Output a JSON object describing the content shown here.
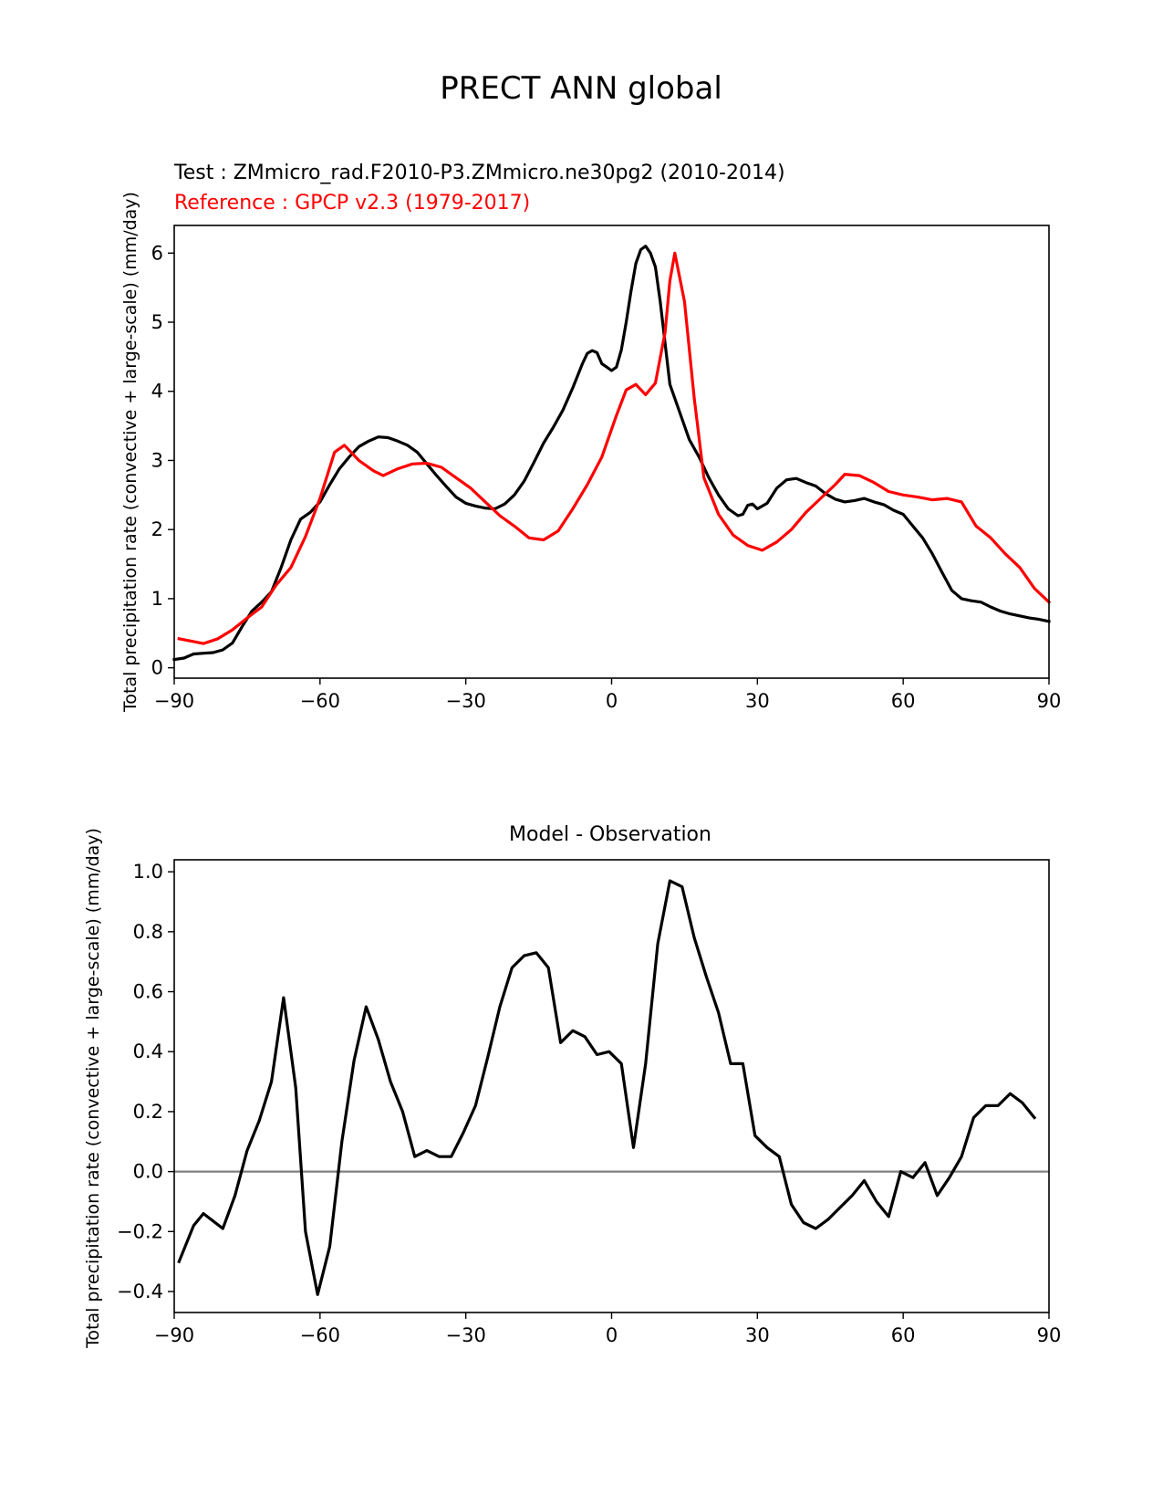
{
  "figure_title": "PRECT ANN global",
  "chart_data": [
    {
      "type": "line",
      "test_label": "Test : ZMmicro_rad.F2010-P3.ZMmicro.ne30pg2 (2010-2014)",
      "reference_label": "Reference : GPCP v2.3 (1979-2017)",
      "ylabel": "Total precipitation rate (convective + large-scale) (mm/day)",
      "xlim": [
        -90,
        90
      ],
      "ylim": [
        -0.15,
        6.4
      ],
      "xticks": [
        -90,
        -60,
        -30,
        0,
        30,
        60,
        90
      ],
      "xtick_labels": [
        "−90",
        "−60",
        "−30",
        "0",
        "30",
        "60",
        "90"
      ],
      "yticks": [
        0,
        1,
        2,
        3,
        4,
        5,
        6
      ],
      "ytick_labels": [
        "0",
        "1",
        "2",
        "3",
        "4",
        "5",
        "6"
      ],
      "series": [
        {
          "role": "test",
          "color": "#000000",
          "points": [
            [
              -90,
              0.12
            ],
            [
              -88,
              0.14
            ],
            [
              -86,
              0.2
            ],
            [
              -84,
              0.21
            ],
            [
              -82,
              0.22
            ],
            [
              -80,
              0.26
            ],
            [
              -78,
              0.36
            ],
            [
              -76,
              0.6
            ],
            [
              -74,
              0.82
            ],
            [
              -72,
              0.95
            ],
            [
              -70,
              1.1
            ],
            [
              -68,
              1.45
            ],
            [
              -66,
              1.85
            ],
            [
              -64,
              2.15
            ],
            [
              -62,
              2.25
            ],
            [
              -60,
              2.4
            ],
            [
              -58,
              2.65
            ],
            [
              -56,
              2.88
            ],
            [
              -54,
              3.05
            ],
            [
              -52,
              3.2
            ],
            [
              -50,
              3.28
            ],
            [
              -48,
              3.34
            ],
            [
              -46,
              3.33
            ],
            [
              -44,
              3.28
            ],
            [
              -42,
              3.22
            ],
            [
              -40,
              3.12
            ],
            [
              -38,
              2.95
            ],
            [
              -36,
              2.78
            ],
            [
              -34,
              2.62
            ],
            [
              -32,
              2.47
            ],
            [
              -30,
              2.38
            ],
            [
              -28,
              2.34
            ],
            [
              -26,
              2.31
            ],
            [
              -24,
              2.3
            ],
            [
              -22,
              2.37
            ],
            [
              -20,
              2.5
            ],
            [
              -18,
              2.7
            ],
            [
              -16,
              2.97
            ],
            [
              -14,
              3.25
            ],
            [
              -12,
              3.48
            ],
            [
              -10,
              3.73
            ],
            [
              -8,
              4.05
            ],
            [
              -6,
              4.4
            ],
            [
              -5,
              4.55
            ],
            [
              -4,
              4.59
            ],
            [
              -3,
              4.56
            ],
            [
              -2,
              4.4
            ],
            [
              -1,
              4.35
            ],
            [
              0,
              4.3
            ],
            [
              1,
              4.35
            ],
            [
              2,
              4.6
            ],
            [
              3,
              5.0
            ],
            [
              4,
              5.45
            ],
            [
              5,
              5.85
            ],
            [
              6,
              6.05
            ],
            [
              7,
              6.1
            ],
            [
              8,
              6.0
            ],
            [
              9,
              5.8
            ],
            [
              10,
              5.3
            ],
            [
              12,
              4.1
            ],
            [
              14,
              3.7
            ],
            [
              16,
              3.3
            ],
            [
              18,
              3.05
            ],
            [
              20,
              2.75
            ],
            [
              22,
              2.5
            ],
            [
              24,
              2.3
            ],
            [
              26,
              2.2
            ],
            [
              27,
              2.22
            ],
            [
              28,
              2.35
            ],
            [
              29,
              2.37
            ],
            [
              30,
              2.3
            ],
            [
              32,
              2.38
            ],
            [
              34,
              2.6
            ],
            [
              36,
              2.72
            ],
            [
              38,
              2.74
            ],
            [
              40,
              2.68
            ],
            [
              42,
              2.63
            ],
            [
              44,
              2.52
            ],
            [
              46,
              2.44
            ],
            [
              48,
              2.4
            ],
            [
              50,
              2.42
            ],
            [
              52,
              2.45
            ],
            [
              54,
              2.4
            ],
            [
              56,
              2.36
            ],
            [
              58,
              2.28
            ],
            [
              60,
              2.22
            ],
            [
              62,
              2.05
            ],
            [
              64,
              1.88
            ],
            [
              66,
              1.65
            ],
            [
              68,
              1.38
            ],
            [
              70,
              1.12
            ],
            [
              72,
              1.0
            ],
            [
              74,
              0.97
            ],
            [
              76,
              0.95
            ],
            [
              78,
              0.88
            ],
            [
              80,
              0.82
            ],
            [
              82,
              0.78
            ],
            [
              84,
              0.75
            ],
            [
              86,
              0.72
            ],
            [
              88,
              0.7
            ],
            [
              90,
              0.67
            ]
          ]
        },
        {
          "role": "reference",
          "color": "#ff0000",
          "points": [
            [
              -89,
              0.42
            ],
            [
              -86,
              0.38
            ],
            [
              -84,
              0.35
            ],
            [
              -81,
              0.42
            ],
            [
              -78,
              0.55
            ],
            [
              -75,
              0.72
            ],
            [
              -72,
              0.88
            ],
            [
              -69,
              1.2
            ],
            [
              -66,
              1.45
            ],
            [
              -63,
              1.9
            ],
            [
              -60,
              2.45
            ],
            [
              -57,
              3.12
            ],
            [
              -55,
              3.22
            ],
            [
              -52,
              3.0
            ],
            [
              -49,
              2.85
            ],
            [
              -47,
              2.78
            ],
            [
              -44,
              2.88
            ],
            [
              -41,
              2.95
            ],
            [
              -38,
              2.96
            ],
            [
              -35,
              2.9
            ],
            [
              -32,
              2.75
            ],
            [
              -29,
              2.6
            ],
            [
              -26,
              2.4
            ],
            [
              -23,
              2.2
            ],
            [
              -20,
              2.05
            ],
            [
              -17,
              1.88
            ],
            [
              -14,
              1.85
            ],
            [
              -11,
              1.98
            ],
            [
              -8,
              2.3
            ],
            [
              -5,
              2.65
            ],
            [
              -2,
              3.05
            ],
            [
              1,
              3.65
            ],
            [
              3,
              4.02
            ],
            [
              5,
              4.1
            ],
            [
              7,
              3.95
            ],
            [
              9,
              4.12
            ],
            [
              11,
              4.85
            ],
            [
              12,
              5.6
            ],
            [
              13,
              6.0
            ],
            [
              15,
              5.3
            ],
            [
              17,
              3.9
            ],
            [
              19,
              2.75
            ],
            [
              22,
              2.22
            ],
            [
              25,
              1.92
            ],
            [
              28,
              1.77
            ],
            [
              31,
              1.7
            ],
            [
              34,
              1.82
            ],
            [
              37,
              2.0
            ],
            [
              40,
              2.25
            ],
            [
              43,
              2.45
            ],
            [
              46,
              2.65
            ],
            [
              48,
              2.8
            ],
            [
              51,
              2.78
            ],
            [
              54,
              2.68
            ],
            [
              57,
              2.55
            ],
            [
              60,
              2.5
            ],
            [
              63,
              2.47
            ],
            [
              66,
              2.43
            ],
            [
              69,
              2.45
            ],
            [
              72,
              2.4
            ],
            [
              75,
              2.05
            ],
            [
              78,
              1.88
            ],
            [
              81,
              1.65
            ],
            [
              84,
              1.45
            ],
            [
              87,
              1.15
            ],
            [
              90,
              0.95
            ]
          ]
        }
      ]
    },
    {
      "type": "line",
      "title": "Model - Observation",
      "ylabel": "Total precipitation rate (convective + large-scale) (mm/day)",
      "xlim": [
        -90,
        90
      ],
      "ylim": [
        -0.47,
        1.04
      ],
      "xticks": [
        -90,
        -60,
        -30,
        0,
        30,
        60,
        90
      ],
      "xtick_labels": [
        "−90",
        "−60",
        "−30",
        "0",
        "30",
        "60",
        "90"
      ],
      "yticks": [
        -0.4,
        -0.2,
        0.0,
        0.2,
        0.4,
        0.6,
        0.8,
        1.0
      ],
      "ytick_labels": [
        "−0.4",
        "−0.2",
        "0.0",
        "0.2",
        "0.4",
        "0.6",
        "0.8",
        "1.0"
      ],
      "zero_line_color": "#808080",
      "series": [
        {
          "role": "difference",
          "color": "#000000",
          "points": [
            [
              -89,
              -0.3
            ],
            [
              -86,
              -0.18
            ],
            [
              -84,
              -0.14
            ],
            [
              -80,
              -0.19
            ],
            [
              -77.5,
              -0.08
            ],
            [
              -75,
              0.07
            ],
            [
              -72.5,
              0.17
            ],
            [
              -70,
              0.3
            ],
            [
              -67.5,
              0.58
            ],
            [
              -65,
              0.28
            ],
            [
              -63,
              -0.2
            ],
            [
              -60.5,
              -0.41
            ],
            [
              -58,
              -0.25
            ],
            [
              -55.5,
              0.1
            ],
            [
              -53,
              0.37
            ],
            [
              -50.5,
              0.55
            ],
            [
              -48,
              0.44
            ],
            [
              -45.5,
              0.3
            ],
            [
              -43,
              0.2
            ],
            [
              -40.5,
              0.05
            ],
            [
              -38,
              0.07
            ],
            [
              -35.5,
              0.05
            ],
            [
              -33,
              0.05
            ],
            [
              -30.5,
              0.13
            ],
            [
              -28,
              0.22
            ],
            [
              -25.5,
              0.38
            ],
            [
              -23,
              0.55
            ],
            [
              -20.5,
              0.68
            ],
            [
              -18,
              0.72
            ],
            [
              -15.5,
              0.73
            ],
            [
              -13,
              0.68
            ],
            [
              -10.5,
              0.43
            ],
            [
              -8,
              0.47
            ],
            [
              -5.5,
              0.45
            ],
            [
              -3,
              0.39
            ],
            [
              -0.5,
              0.4
            ],
            [
              2,
              0.36
            ],
            [
              4.5,
              0.08
            ],
            [
              7,
              0.36
            ],
            [
              9.5,
              0.76
            ],
            [
              12,
              0.97
            ],
            [
              14.5,
              0.95
            ],
            [
              17,
              0.78
            ],
            [
              19.5,
              0.65
            ],
            [
              22,
              0.53
            ],
            [
              24.5,
              0.36
            ],
            [
              27,
              0.36
            ],
            [
              29.5,
              0.12
            ],
            [
              32,
              0.08
            ],
            [
              34.5,
              0.05
            ],
            [
              37,
              -0.11
            ],
            [
              39.5,
              -0.17
            ],
            [
              42,
              -0.19
            ],
            [
              44.5,
              -0.16
            ],
            [
              47,
              -0.12
            ],
            [
              49.5,
              -0.08
            ],
            [
              52,
              -0.03
            ],
            [
              54.5,
              -0.1
            ],
            [
              57,
              -0.15
            ],
            [
              59.5,
              0.0
            ],
            [
              62,
              -0.02
            ],
            [
              64.5,
              0.03
            ],
            [
              67,
              -0.08
            ],
            [
              69.5,
              -0.02
            ],
            [
              72,
              0.05
            ],
            [
              74.5,
              0.18
            ],
            [
              77,
              0.22
            ],
            [
              79.5,
              0.22
            ],
            [
              82,
              0.26
            ],
            [
              84.5,
              0.23
            ],
            [
              87,
              0.18
            ]
          ]
        }
      ]
    }
  ]
}
